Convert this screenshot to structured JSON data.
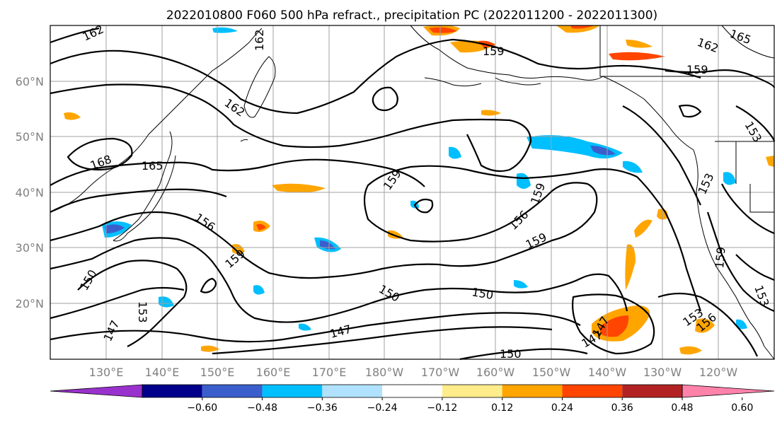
{
  "title": "2022010800 F060 500 hPa refract., precipitation PC (2022011200 - 2022011300)",
  "lat_labels": [
    "60°N",
    "50°N",
    "40°N",
    "30°N",
    "20°N"
  ],
  "lon_labels": [
    "130°E",
    "140°E",
    "150°E",
    "160°E",
    "170°E",
    "180°W",
    "170°W",
    "160°W",
    "150°W",
    "140°W",
    "130°W",
    "120°W"
  ],
  "contour_labels": [
    "162",
    "162",
    "162",
    "165",
    "159",
    "159",
    "162",
    "168",
    "165",
    "159",
    "159",
    "156",
    "159",
    "156",
    "153",
    "159",
    "150",
    "150",
    "150",
    "147",
    "147",
    "147",
    "153",
    "153",
    "150",
    "147",
    "159",
    "156",
    "153",
    "153"
  ],
  "colorbar": {
    "ticks": [
      "−0.60",
      "−0.48",
      "−0.36",
      "−0.24",
      "−0.12",
      "0.12",
      "0.24",
      "0.36",
      "0.48",
      "0.60"
    ],
    "colors": [
      "#9932cc",
      "#00008b",
      "#3a5fcd",
      "#00bfff",
      "#b0e2ff",
      "#ffffff",
      "#ffec8b",
      "#ffa500",
      "#ff4500",
      "#b22222",
      "#ff82ab"
    ]
  }
}
